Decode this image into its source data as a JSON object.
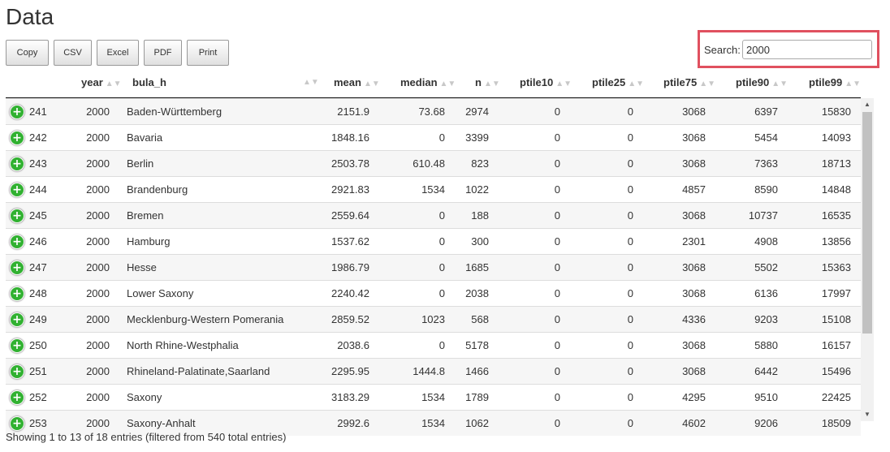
{
  "page": {
    "title": "Data"
  },
  "toolbar": {
    "buttons": [
      {
        "label": "Copy"
      },
      {
        "label": "CSV"
      },
      {
        "label": "Excel"
      },
      {
        "label": "PDF"
      },
      {
        "label": "Print"
      }
    ]
  },
  "search": {
    "label": "Search:",
    "value": "2000"
  },
  "table": {
    "columns": [
      "",
      "year",
      "bula_h",
      "mean",
      "median",
      "n",
      "ptile10",
      "ptile25",
      "ptile75",
      "ptile90",
      "ptile99"
    ],
    "rows": [
      [
        "241",
        "2000",
        "Baden-Württemberg",
        "2151.9",
        "73.68",
        "2974",
        "0",
        "0",
        "3068",
        "6397",
        "15830"
      ],
      [
        "242",
        "2000",
        "Bavaria",
        "1848.16",
        "0",
        "3399",
        "0",
        "0",
        "3068",
        "5454",
        "14093"
      ],
      [
        "243",
        "2000",
        "Berlin",
        "2503.78",
        "610.48",
        "823",
        "0",
        "0",
        "3068",
        "7363",
        "18713"
      ],
      [
        "244",
        "2000",
        "Brandenburg",
        "2921.83",
        "1534",
        "1022",
        "0",
        "0",
        "4857",
        "8590",
        "14848"
      ],
      [
        "245",
        "2000",
        "Bremen",
        "2559.64",
        "0",
        "188",
        "0",
        "0",
        "3068",
        "10737",
        "16535"
      ],
      [
        "246",
        "2000",
        "Hamburg",
        "1537.62",
        "0",
        "300",
        "0",
        "0",
        "2301",
        "4908",
        "13856"
      ],
      [
        "247",
        "2000",
        "Hesse",
        "1986.79",
        "0",
        "1685",
        "0",
        "0",
        "3068",
        "5502",
        "15363"
      ],
      [
        "248",
        "2000",
        "Lower Saxony",
        "2240.42",
        "0",
        "2038",
        "0",
        "0",
        "3068",
        "6136",
        "17997"
      ],
      [
        "249",
        "2000",
        "Mecklenburg-Western Pomerania",
        "2859.52",
        "1023",
        "568",
        "0",
        "0",
        "4336",
        "9203",
        "15108"
      ],
      [
        "250",
        "2000",
        "North Rhine-Westphalia",
        "2038.6",
        "0",
        "5178",
        "0",
        "0",
        "3068",
        "5880",
        "16157"
      ],
      [
        "251",
        "2000",
        "Rhineland-Palatinate,Saarland",
        "2295.95",
        "1444.8",
        "1466",
        "0",
        "0",
        "3068",
        "6442",
        "15496"
      ],
      [
        "252",
        "2000",
        "Saxony",
        "3183.29",
        "1534",
        "1789",
        "0",
        "0",
        "4295",
        "9510",
        "22425"
      ],
      [
        "253",
        "2000",
        "Saxony-Anhalt",
        "2992.6",
        "1534",
        "1062",
        "0",
        "0",
        "4602",
        "9206",
        "18509"
      ]
    ]
  },
  "footer": {
    "info": "Showing 1 to 13 of 18 entries (filtered from 540 total entries)"
  },
  "colors": {
    "accent_outline": "#e0505f",
    "expand_icon": "#31b131",
    "stripe": "#f6f6f6"
  }
}
